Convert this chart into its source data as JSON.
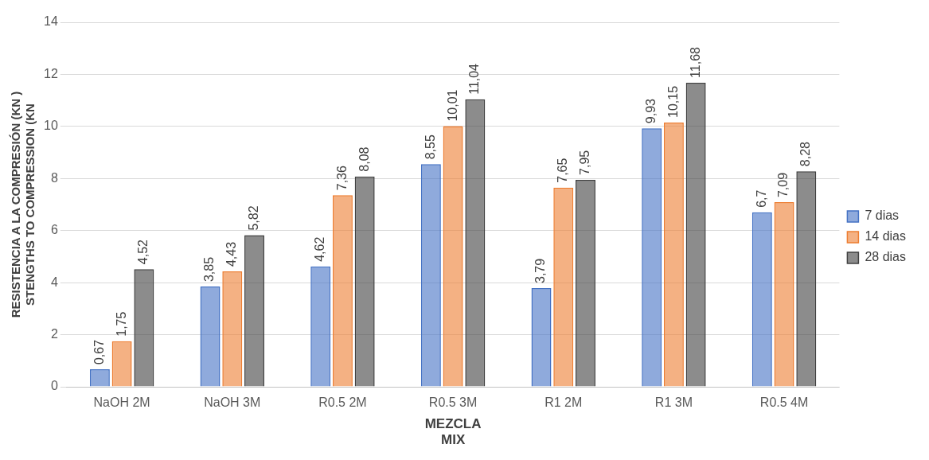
{
  "chart_data": {
    "type": "bar",
    "xlabel": "MEZCLA\nMIX",
    "ylabel": "RESISTENCIA A LA COMPRESIÓN (KN )\nSTENGTHS TO COMPRESSION (KN",
    "categories": [
      "NaOH 2M",
      "NaOH 3M",
      "R0.5 2M",
      "R0.5 3M",
      "R1 2M",
      "R1 3M",
      "R0.5 4M"
    ],
    "series": [
      {
        "name": "7 dias",
        "color": "#4472c4",
        "values": [
          0.67,
          3.85,
          4.62,
          8.55,
          3.79,
          9.93,
          6.7
        ],
        "value_labels": [
          "0,67",
          "3,85",
          "4,62",
          "8,55",
          "3,79",
          "9,93",
          "6,7"
        ]
      },
      {
        "name": "14 dias",
        "color": "#ed7d31",
        "values": [
          1.75,
          4.43,
          7.36,
          10.01,
          7.65,
          10.15,
          7.09
        ],
        "value_labels": [
          "1,75",
          "4,43",
          "7,36",
          "10,01",
          "7,65",
          "10,15",
          "7,09"
        ]
      },
      {
        "name": "28 dias",
        "color": "#404040",
        "values": [
          4.52,
          5.82,
          8.08,
          11.04,
          7.95,
          11.68,
          8.28
        ],
        "value_labels": [
          "4,52",
          "5,82",
          "8,08",
          "11,04",
          "7,95",
          "11,68",
          "8,28"
        ]
      }
    ],
    "ylim": [
      0,
      14
    ],
    "yticks": [
      0,
      2,
      4,
      6,
      8,
      10,
      12,
      14
    ],
    "grid": "y",
    "legend": "right"
  }
}
